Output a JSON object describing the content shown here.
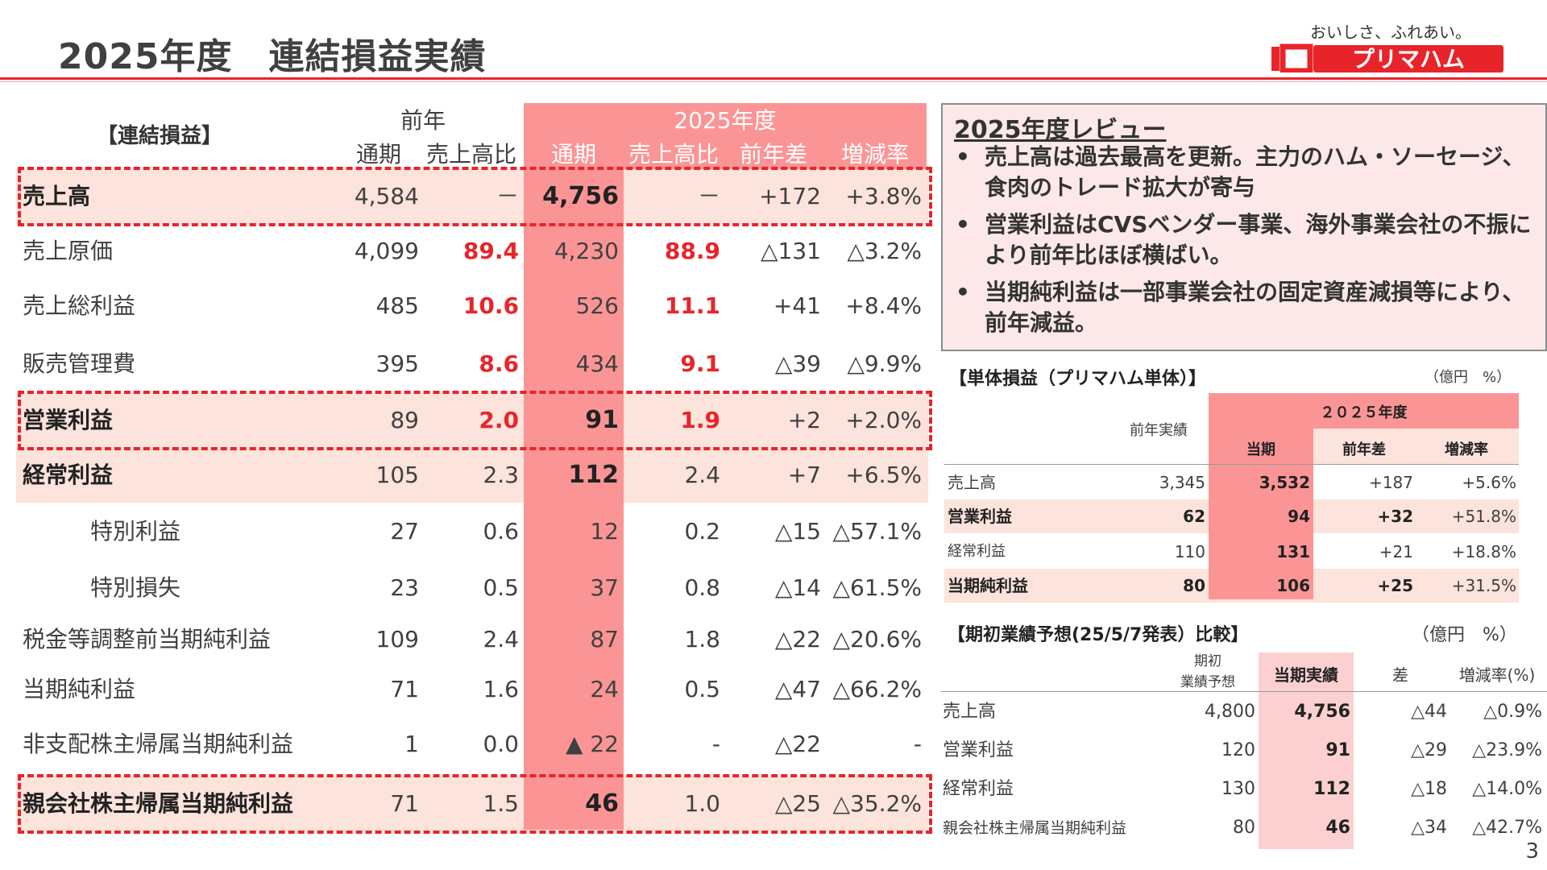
{
  "header": {
    "title": "2025年度　連結損益実績",
    "tagline": "おいしさ、ふれあい。",
    "logo_text": "プリマハム",
    "accent_color": "#e8242b"
  },
  "main_table": {
    "section_label": "【連結損益】",
    "prev_year_group": "前年",
    "current_year_group": "2025年度",
    "columns": [
      "通期",
      "売上高比",
      "通期",
      "売上高比",
      "前年差",
      "増減率"
    ],
    "rows": [
      {
        "name": "売上高",
        "prev": "4,584",
        "prev_ratio": "－",
        "cur": "4,756",
        "cur_ratio": "－",
        "diff": "+172",
        "rate": "+3.8%"
      },
      {
        "name": "売上原価",
        "prev": "4,099",
        "prev_ratio": "89.4",
        "cur": "4,230",
        "cur_ratio": "88.9",
        "diff": "△131",
        "rate": "△3.2%"
      },
      {
        "name": "売上総利益",
        "prev": "485",
        "prev_ratio": "10.6",
        "cur": "526",
        "cur_ratio": "11.1",
        "diff": "+41",
        "rate": "+8.4%"
      },
      {
        "name": "販売管理費",
        "prev": "395",
        "prev_ratio": "8.6",
        "cur": "434",
        "cur_ratio": "9.1",
        "diff": "△39",
        "rate": "△9.9%"
      },
      {
        "name": "営業利益",
        "prev": "89",
        "prev_ratio": "2.0",
        "cur": "91",
        "cur_ratio": "1.9",
        "diff": "+2",
        "rate": "+2.0%"
      },
      {
        "name": "経常利益",
        "prev": "105",
        "prev_ratio": "2.3",
        "cur": "112",
        "cur_ratio": "2.4",
        "diff": "+7",
        "rate": "+6.5%"
      },
      {
        "name": "特別利益",
        "prev": "27",
        "prev_ratio": "0.6",
        "cur": "12",
        "cur_ratio": "0.2",
        "diff": "△15",
        "rate": "△57.1%"
      },
      {
        "name": "特別損失",
        "prev": "23",
        "prev_ratio": "0.5",
        "cur": "37",
        "cur_ratio": "0.8",
        "diff": "△14",
        "rate": "△61.5%"
      },
      {
        "name": "税金等調整前当期純利益",
        "prev": "109",
        "prev_ratio": "2.4",
        "cur": "87",
        "cur_ratio": "1.8",
        "diff": "△22",
        "rate": "△20.6%"
      },
      {
        "name": "当期純利益",
        "prev": "71",
        "prev_ratio": "1.6",
        "cur": "24",
        "cur_ratio": "0.5",
        "diff": "△47",
        "rate": "△66.2%"
      },
      {
        "name": "非支配株主帰属当期純利益",
        "prev": "1",
        "prev_ratio": "0.0",
        "cur": "▲ 22",
        "cur_ratio": "-",
        "diff": "△22",
        "rate": "-"
      },
      {
        "name": "親会社株主帰属当期純利益",
        "prev": "71",
        "prev_ratio": "1.5",
        "cur": "46",
        "cur_ratio": "1.0",
        "diff": "△25",
        "rate": "△35.2%"
      }
    ]
  },
  "review": {
    "title": "2025年度レビュー",
    "bullet": "•",
    "items": [
      "売上高は過去最高を更新。主力のハム・ソーセージ、食肉のトレード拡大が寄与",
      "営業利益はCVSベンダー事業、海外事業会社の不振により前年比ほぼ横ばい。",
      "当期純利益は一部事業会社の固定資産減損等により、前年減益。"
    ]
  },
  "standalone": {
    "title": "【単体損益（プリマハム単体）】",
    "unit": "（億円　%）",
    "group": "２０２５年度",
    "columns": [
      "前年実績",
      "当期",
      "前年差",
      "増減率"
    ],
    "rows": [
      {
        "name": "売上高",
        "prev": "3,345",
        "cur": "3,532",
        "diff": "+187",
        "rate": "+5.6%"
      },
      {
        "name": "営業利益",
        "prev": "62",
        "cur": "94",
        "diff": "+32",
        "rate": "+51.8%"
      },
      {
        "name": "経常利益",
        "prev": "110",
        "cur": "131",
        "diff": "+21",
        "rate": "+18.8%"
      },
      {
        "name": "当期純利益",
        "prev": "80",
        "cur": "106",
        "diff": "+25",
        "rate": "+31.5%"
      }
    ]
  },
  "forecast": {
    "title": "【期初業績予想(25/5/7発表）比較】",
    "unit": "（億円　%）",
    "columns": [
      "期初",
      "業績予想",
      "当期実績",
      "差",
      "増減率(%)"
    ],
    "rows": [
      {
        "name": "売上高",
        "plan": "4,800",
        "actual": "4,756",
        "diff": "△44",
        "rate": "△0.9%"
      },
      {
        "name": "営業利益",
        "plan": "120",
        "actual": "91",
        "diff": "△29",
        "rate": "△23.9%"
      },
      {
        "name": "経常利益",
        "plan": "130",
        "actual": "112",
        "diff": "△18",
        "rate": "△14.0%"
      },
      {
        "name": "親会社株主帰属当期純利益",
        "plan": "80",
        "actual": "46",
        "diff": "△34",
        "rate": "△42.7%"
      }
    ]
  },
  "page_number": "3"
}
